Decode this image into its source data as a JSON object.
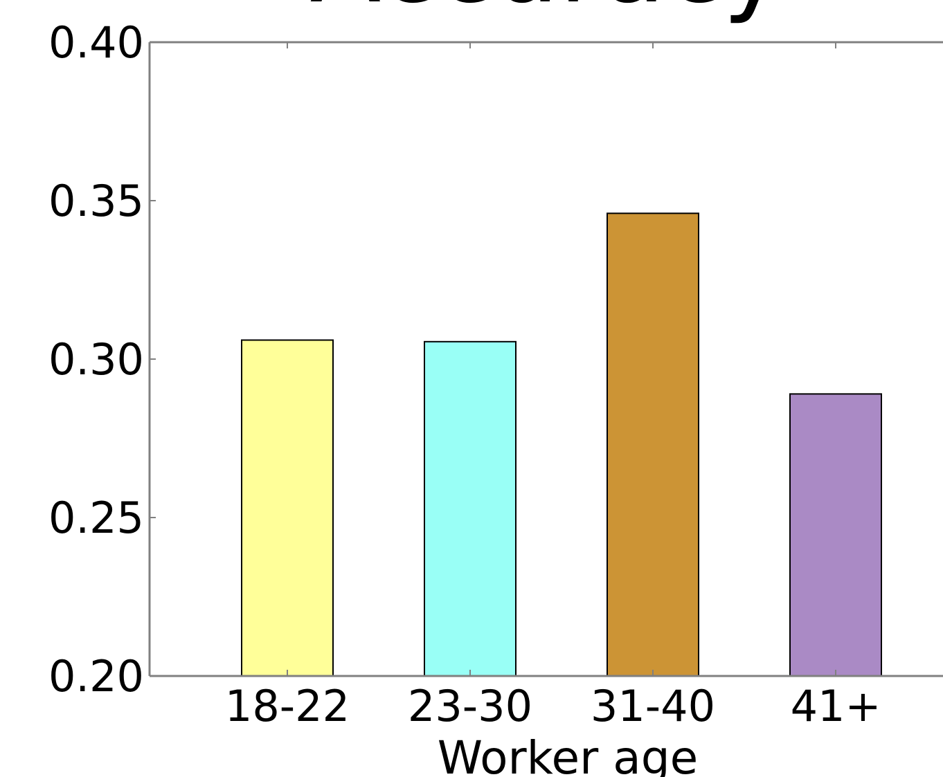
{
  "chart_data": {
    "type": "bar",
    "title": "Accuracy",
    "xlabel": "Worker age",
    "ylabel": "",
    "categories": [
      "18-22",
      "23-30",
      "31-40",
      "41+"
    ],
    "values": [
      0.306,
      0.3055,
      0.346,
      0.289
    ],
    "colors": [
      "#ffff99",
      "#99fff6",
      "#cc9435",
      "#aa8ac5"
    ],
    "ylim": [
      0.2,
      0.4
    ],
    "yticks": [
      0.2,
      0.25,
      0.3,
      0.35,
      0.4
    ],
    "ytick_labels": [
      "0.20",
      "0.25",
      "0.30",
      "0.35",
      "0.40"
    ],
    "grid": false,
    "legend": "none"
  }
}
